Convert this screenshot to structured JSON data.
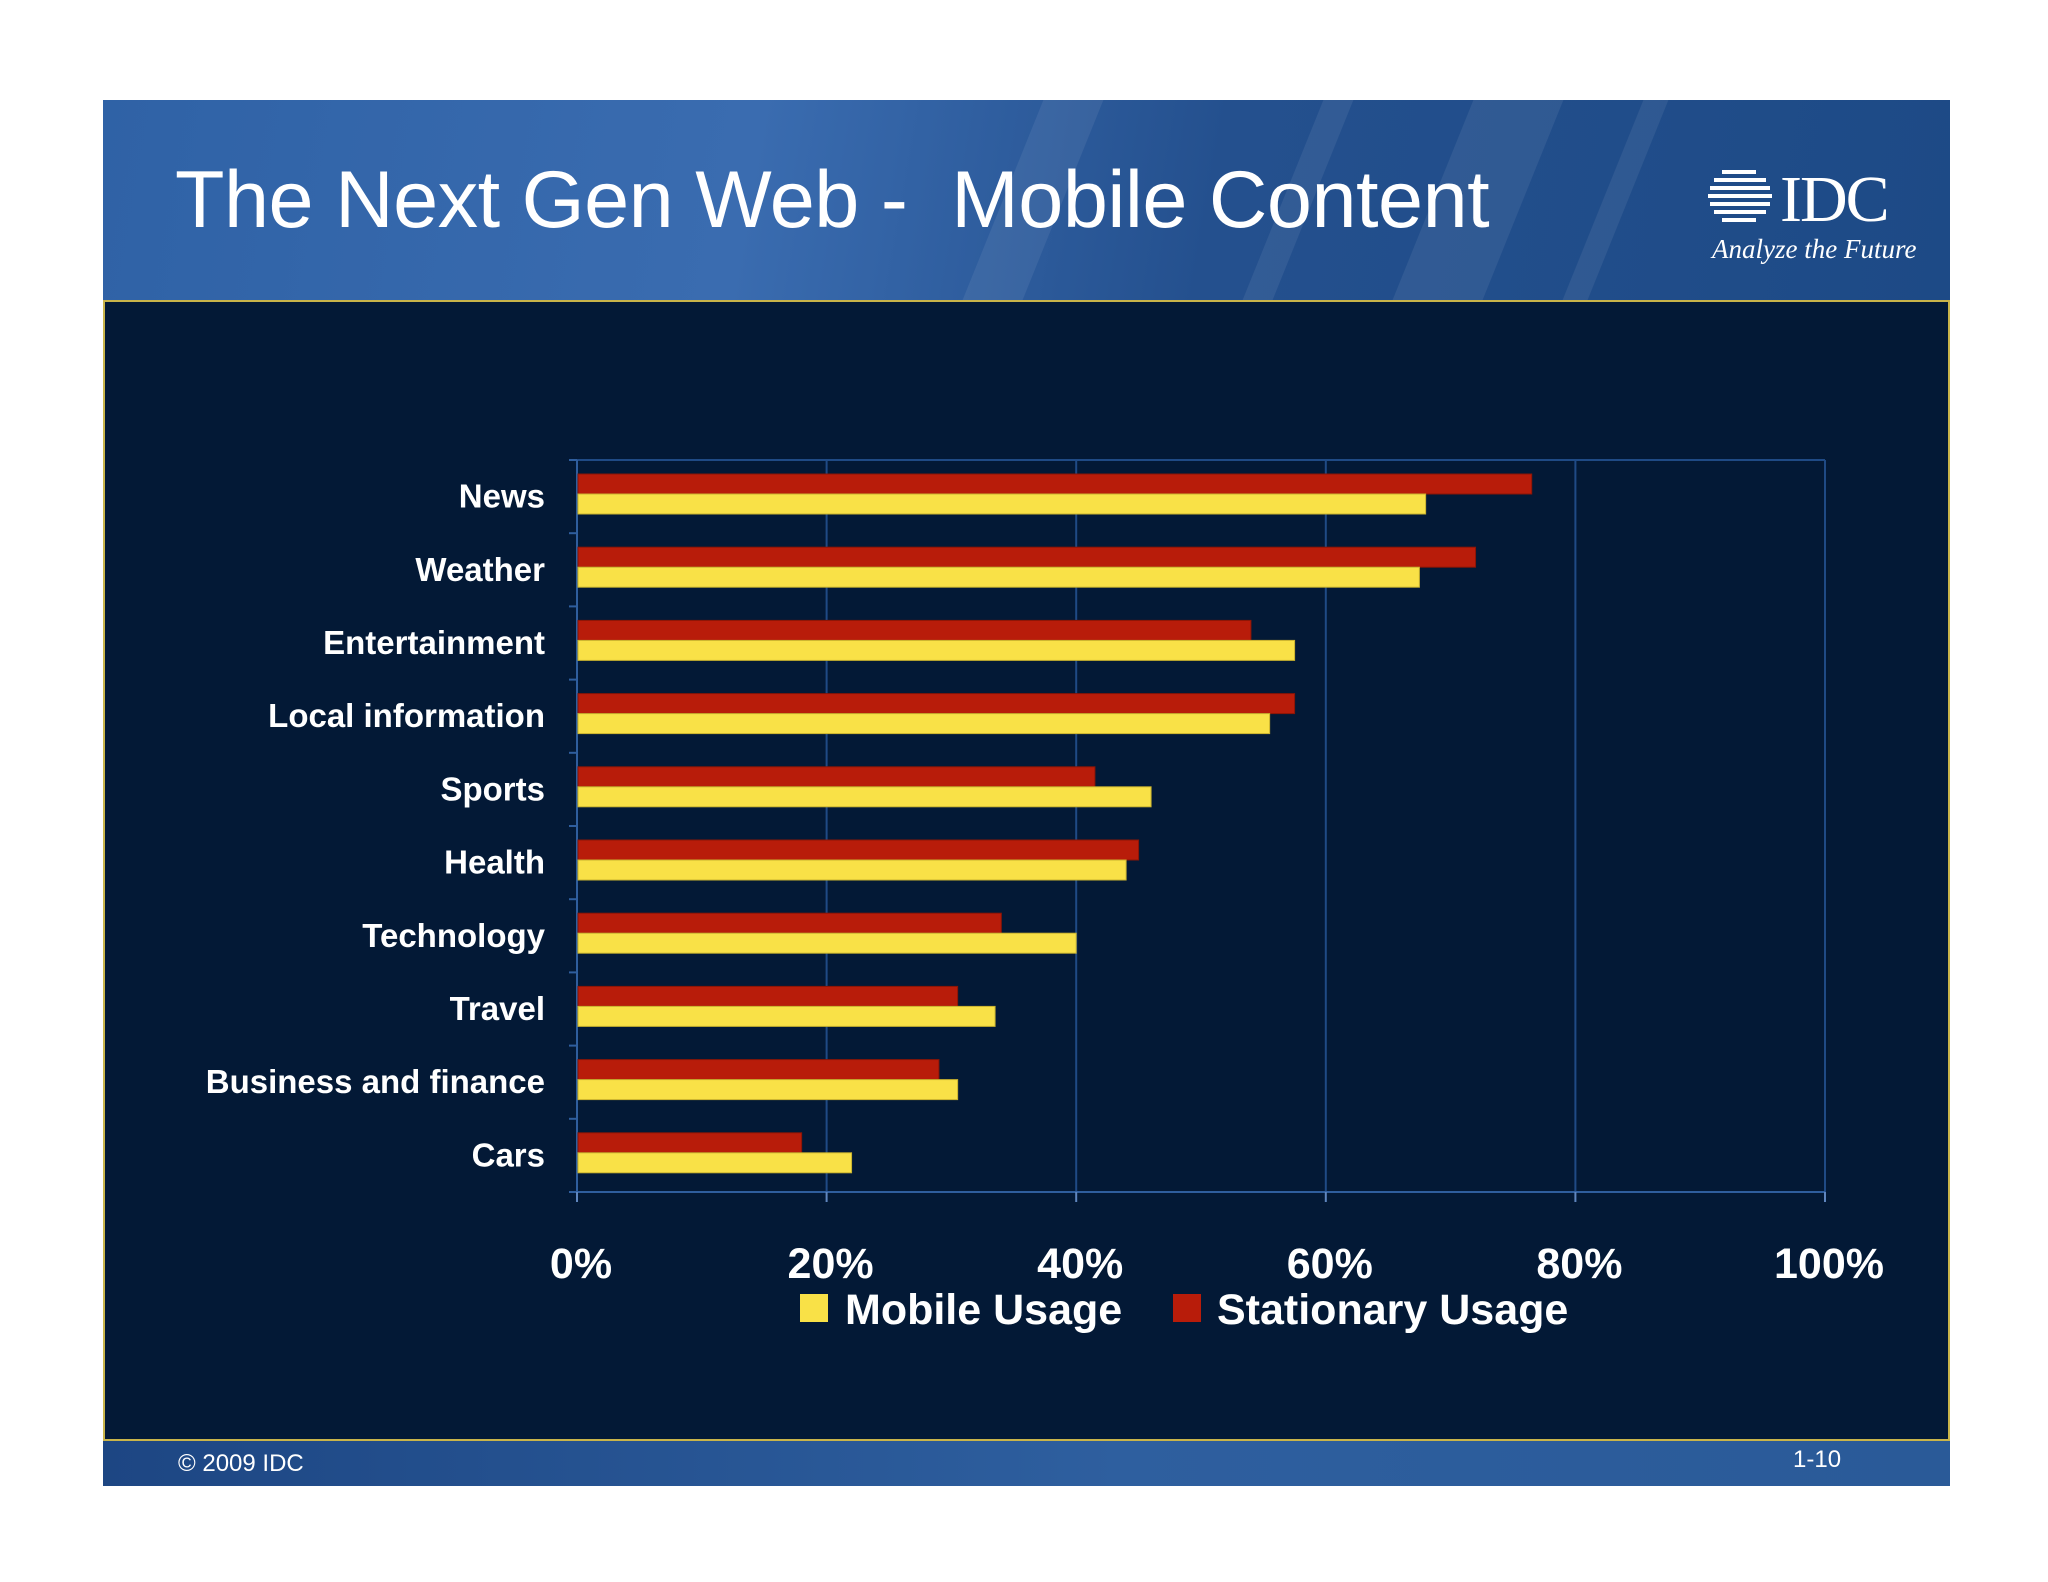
{
  "slide": {
    "title": "The Next Gen Web -  Mobile Content",
    "logo": {
      "text": "IDC",
      "tagline": "Analyze the Future"
    },
    "footer": {
      "copyright": "© 2009 IDC",
      "page_number": "1-10"
    }
  },
  "colors": {
    "mobile": "#f9e147",
    "stationary": "#b81c0a",
    "panel_background": "#031936",
    "gridline": "#1f4a85"
  },
  "chart_data": {
    "type": "bar",
    "orientation": "horizontal",
    "categories": [
      "News",
      "Weather",
      "Entertainment",
      "Local information",
      "Sports",
      "Health",
      "Technology",
      "Travel",
      "Business and finance",
      "Cars"
    ],
    "series": [
      {
        "name": "Mobile Usage",
        "values": [
          68,
          67.5,
          57.5,
          55.5,
          46,
          44,
          40,
          33.5,
          30.5,
          22
        ]
      },
      {
        "name": "Stationary Usage",
        "values": [
          76.5,
          72,
          54,
          57.5,
          41.5,
          45,
          34,
          30.5,
          29,
          18
        ]
      }
    ],
    "x_ticks": [
      "0%",
      "20%",
      "40%",
      "60%",
      "80%",
      "100%"
    ],
    "xlim": [
      0,
      100
    ],
    "grid": true,
    "legend_position": "bottom"
  }
}
